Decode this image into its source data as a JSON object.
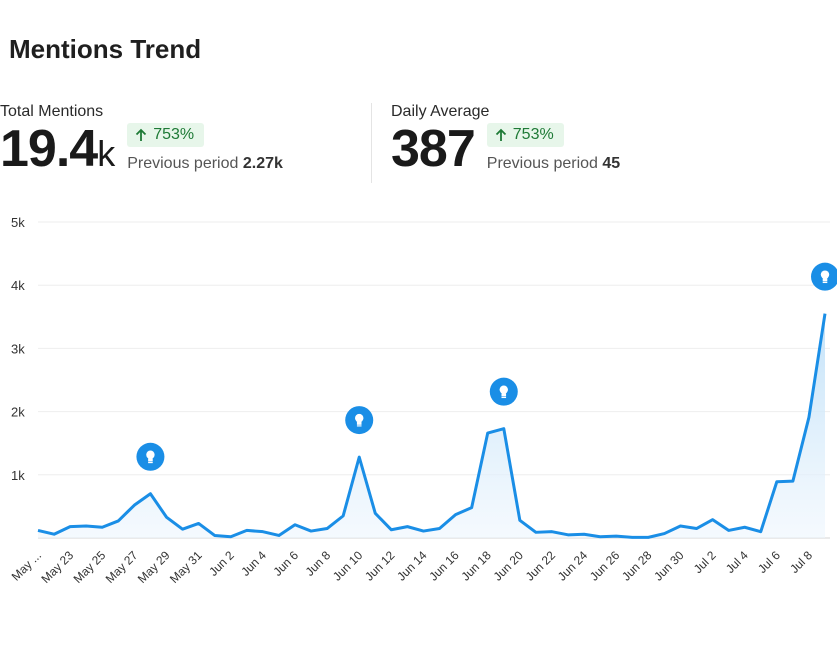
{
  "title": "Mentions Trend",
  "kpis": [
    {
      "label": "Total Mentions",
      "value": "19.4",
      "suffix": "k",
      "change": "753%",
      "prev_label": "Previous period",
      "prev_value": "2.27k"
    },
    {
      "label": "Daily Average",
      "value": "387",
      "suffix": "",
      "change": "753%",
      "prev_label": "Previous period",
      "prev_value": "45"
    }
  ],
  "chart_data": {
    "type": "area",
    "title": "",
    "xlabel": "",
    "ylabel": "",
    "y_ticks": [
      "",
      "1k",
      "2k",
      "3k",
      "4k",
      "5k"
    ],
    "ylim": [
      0,
      5000
    ],
    "x_tick_labels": [
      "May ...",
      "May 23",
      "May 25",
      "May 27",
      "May 29",
      "May 31",
      "Jun 2",
      "Jun 4",
      "Jun 6",
      "Jun 8",
      "Jun 10",
      "Jun 12",
      "Jun 14",
      "Jun 16",
      "Jun 18",
      "Jun 20",
      "Jun 22",
      "Jun 24",
      "Jun 26",
      "Jun 28",
      "Jun 30",
      "Jul 2",
      "Jul 4",
      "Jul 6",
      "Jul 8"
    ],
    "series": [
      {
        "values": [
          120,
          60,
          180,
          190,
          170,
          270,
          520,
          700,
          330,
          140,
          230,
          40,
          20,
          120,
          100,
          40,
          210,
          110,
          150,
          350,
          1280,
          390,
          130,
          180,
          110,
          150,
          370,
          480,
          1660,
          1730,
          280,
          90,
          100,
          50,
          60,
          20,
          30,
          10,
          10,
          70,
          190,
          150,
          290,
          120,
          170,
          100,
          890,
          900,
          1910,
          3550
        ]
      }
    ],
    "insight_markers": [
      {
        "index": 7,
        "icon": "lightbulb-icon"
      },
      {
        "index": 20,
        "icon": "lightbulb-icon"
      },
      {
        "index": 29,
        "icon": "lightbulb-icon"
      },
      {
        "index": 49,
        "icon": "lightbulb-icon"
      }
    ],
    "colors": {
      "line": "#1a8ee6",
      "fill_top": "#bfe0f8",
      "fill_bottom": "#eef6fd",
      "marker": "#1a8ee6",
      "grid": "#eeeeee"
    },
    "grid": true,
    "legend": "none"
  }
}
